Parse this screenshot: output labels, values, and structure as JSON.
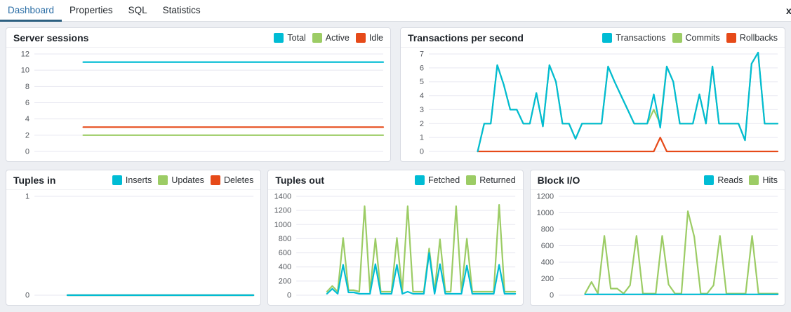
{
  "tabs": {
    "items": [
      {
        "label": "Dashboard",
        "active": true
      },
      {
        "label": "Properties",
        "active": false
      },
      {
        "label": "SQL",
        "active": false
      },
      {
        "label": "Statistics",
        "active": false
      }
    ],
    "overflow_icon": "x"
  },
  "colors": {
    "series_cyan": "#00BCD4",
    "series_green": "#9CCC65",
    "series_orange": "#E64A19",
    "active_tab_text": "#2a6da5",
    "active_tab_underline": "#2c5f80",
    "grid": "#e7e7f0",
    "page_background": "#edeff3",
    "panel_border": "#d8dbe2"
  },
  "chart_data": [
    {
      "id": "server-sessions",
      "type": "line",
      "title": "Server sessions",
      "ylim": [
        0,
        12
      ],
      "yticks": [
        0,
        2,
        4,
        6,
        8,
        10,
        12
      ],
      "lead_gap_frac": 0.14,
      "grid": true,
      "legend_position": "top-right",
      "legend": [
        {
          "name": "Total",
          "color": "#00BCD4"
        },
        {
          "name": "Active",
          "color": "#9CCC65"
        },
        {
          "name": "Idle",
          "color": "#E64A19"
        }
      ],
      "series": [
        {
          "name": "Active",
          "color": "#9CCC65",
          "values": [
            2,
            2
          ]
        },
        {
          "name": "Idle",
          "color": "#E64A19",
          "values": [
            3,
            3
          ]
        },
        {
          "name": "Total",
          "color": "#00BCD4",
          "values": [
            11,
            11
          ]
        }
      ]
    },
    {
      "id": "transactions-per-second",
      "type": "line",
      "title": "Transactions per second",
      "ylim": [
        0,
        7
      ],
      "yticks": [
        0,
        1,
        2,
        3,
        4,
        5,
        6,
        7
      ],
      "lead_gap_frac": 0.14,
      "grid": true,
      "legend_position": "top-right",
      "legend": [
        {
          "name": "Transactions",
          "color": "#00BCD4"
        },
        {
          "name": "Commits",
          "color": "#9CCC65"
        },
        {
          "name": "Rollbacks",
          "color": "#E64A19"
        }
      ],
      "series": [
        {
          "name": "Rollbacks",
          "color": "#E64A19",
          "values": [
            0,
            0,
            0,
            0,
            0,
            0,
            0,
            0,
            0,
            0,
            0,
            0,
            0,
            0,
            0,
            0,
            0,
            0,
            0,
            0,
            0,
            0,
            0,
            0,
            0,
            0,
            0,
            0,
            1,
            0,
            0,
            0,
            0,
            0,
            0,
            0,
            0,
            0,
            0,
            0,
            0,
            0,
            0,
            0,
            0,
            0,
            0
          ]
        },
        {
          "name": "Commits",
          "color": "#9CCC65",
          "values": [
            0,
            2,
            2,
            6.2,
            4.8,
            3,
            3,
            2,
            2,
            4.2,
            1.8,
            6.2,
            5,
            2,
            2,
            0.9,
            2,
            2,
            2,
            2,
            6.1,
            5,
            4,
            3,
            2,
            2,
            2,
            3,
            2,
            6.1,
            5,
            2,
            2,
            2,
            4.1,
            2,
            6.1,
            2,
            2,
            2,
            2,
            0.8,
            6.3,
            7.1,
            2,
            2,
            2
          ]
        },
        {
          "name": "Transactions",
          "color": "#00BCD4",
          "values": [
            0,
            2,
            2,
            6.2,
            4.8,
            3,
            3,
            2,
            2,
            4.2,
            1.8,
            6.2,
            5,
            2,
            2,
            0.9,
            2,
            2,
            2,
            2,
            6.1,
            5,
            4,
            3,
            2,
            2,
            2,
            4.1,
            1.7,
            6.1,
            5,
            2,
            2,
            2,
            4.1,
            2,
            6.1,
            2,
            2,
            2,
            2,
            0.8,
            6.3,
            7.1,
            2,
            2,
            2
          ]
        }
      ]
    },
    {
      "id": "tuples-in",
      "type": "line",
      "title": "Tuples in",
      "ylim": [
        0,
        1
      ],
      "yticks": [
        0,
        1
      ],
      "lead_gap_frac": 0.15,
      "grid": true,
      "legend_position": "top-right",
      "legend": [
        {
          "name": "Inserts",
          "color": "#00BCD4"
        },
        {
          "name": "Updates",
          "color": "#9CCC65"
        },
        {
          "name": "Deletes",
          "color": "#E64A19"
        }
      ],
      "series": [
        {
          "name": "Deletes",
          "color": "#E64A19",
          "values": [
            0,
            0
          ]
        },
        {
          "name": "Updates",
          "color": "#9CCC65",
          "values": [
            0,
            0
          ]
        },
        {
          "name": "Inserts",
          "color": "#00BCD4",
          "values": [
            0,
            0
          ]
        }
      ]
    },
    {
      "id": "tuples-out",
      "type": "line",
      "title": "Tuples out",
      "ylim": [
        0,
        1400
      ],
      "yticks": [
        0,
        200,
        400,
        600,
        800,
        1000,
        1200,
        1400
      ],
      "lead_gap_frac": 0.14,
      "grid": true,
      "legend_position": "top-right",
      "legend": [
        {
          "name": "Fetched",
          "color": "#00BCD4"
        },
        {
          "name": "Returned",
          "color": "#9CCC65"
        }
      ],
      "series": [
        {
          "name": "Returned",
          "color": "#9CCC65",
          "values": [
            50,
            130,
            50,
            810,
            70,
            70,
            50,
            1260,
            50,
            800,
            50,
            50,
            50,
            810,
            50,
            1260,
            50,
            50,
            50,
            660,
            50,
            790,
            50,
            50,
            1260,
            50,
            800,
            50,
            50,
            50,
            50,
            50,
            1280,
            50,
            50,
            50
          ]
        },
        {
          "name": "Fetched",
          "color": "#00BCD4",
          "values": [
            20,
            90,
            20,
            430,
            40,
            40,
            20,
            20,
            20,
            440,
            20,
            20,
            20,
            430,
            20,
            50,
            20,
            20,
            20,
            600,
            20,
            440,
            20,
            20,
            20,
            20,
            420,
            20,
            20,
            20,
            20,
            20,
            430,
            20,
            20,
            20
          ]
        }
      ]
    },
    {
      "id": "block-io",
      "type": "line",
      "title": "Block I/O",
      "ylim": [
        0,
        1200
      ],
      "yticks": [
        0,
        200,
        400,
        600,
        800,
        1000,
        1200
      ],
      "lead_gap_frac": 0.12,
      "grid": true,
      "legend_position": "top-right",
      "legend": [
        {
          "name": "Reads",
          "color": "#00BCD4"
        },
        {
          "name": "Hits",
          "color": "#9CCC65"
        }
      ],
      "series": [
        {
          "name": "Hits",
          "color": "#9CCC65",
          "values": [
            20,
            160,
            20,
            720,
            80,
            80,
            20,
            120,
            720,
            20,
            20,
            20,
            720,
            130,
            20,
            20,
            1020,
            710,
            20,
            20,
            120,
            720,
            20,
            20,
            20,
            20,
            720,
            20,
            20,
            20,
            20
          ]
        },
        {
          "name": "Reads",
          "color": "#00BCD4",
          "values": [
            10,
            10
          ]
        }
      ]
    }
  ]
}
